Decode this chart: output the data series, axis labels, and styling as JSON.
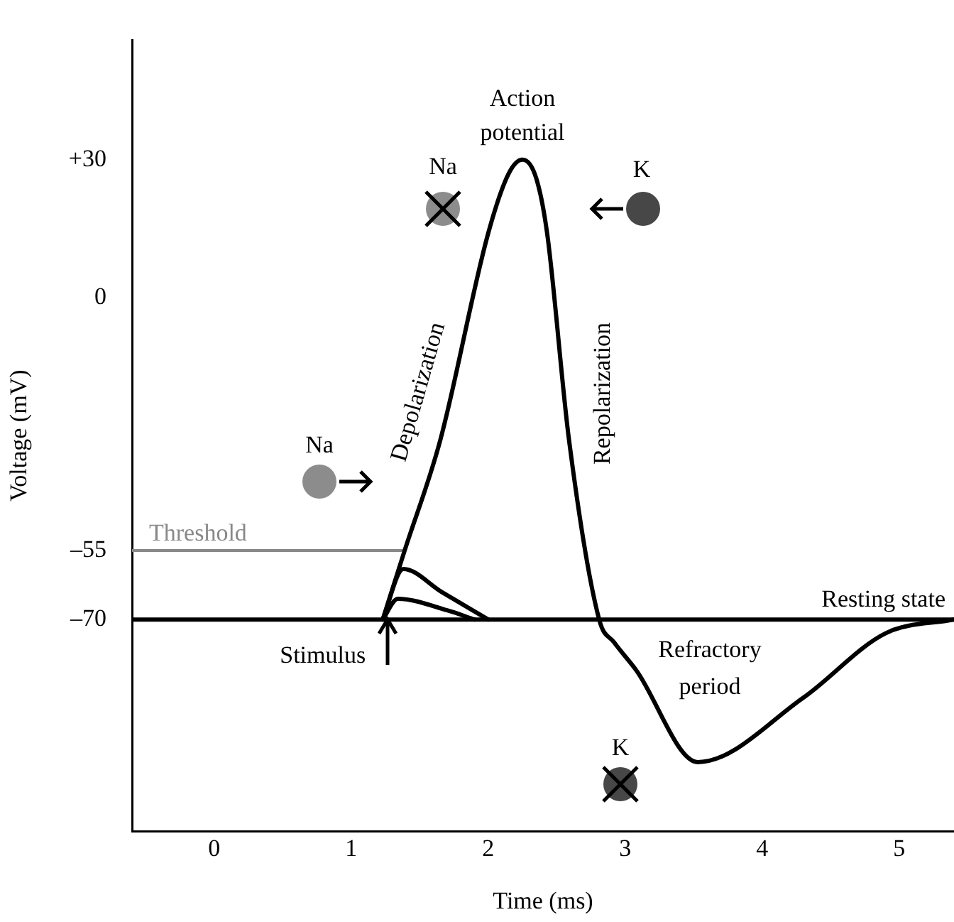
{
  "chart_data": {
    "type": "line",
    "xlabel": "Time (ms)",
    "ylabel": "Voltage (mV)",
    "xlim": [
      -0.6,
      5.4
    ],
    "xticks": [
      0,
      1,
      2,
      3,
      4,
      5
    ],
    "ylim": [
      -116,
      56
    ],
    "yticks": [
      {
        "value": 30,
        "label": "+30"
      },
      0,
      {
        "value": -55,
        "label": "–55"
      },
      {
        "value": -70,
        "label": "–70"
      }
    ],
    "grid": false,
    "marker": "none",
    "series": [
      {
        "color": "#000000",
        "x": [
          1.23,
          1.39,
          1.65,
          2.0,
          2.15,
          2.25,
          2.35,
          2.43,
          2.59,
          2.81,
          2.92,
          3.08,
          3.53,
          4.3,
          4.9,
          5.4
        ],
        "values": [
          -70,
          -55,
          -31,
          14,
          27,
          30,
          26,
          14,
          -31,
          -70,
          -75,
          -81,
          -101,
          -87,
          -73,
          -70
        ]
      },
      {
        "color": "#000000",
        "x": [
          1.23,
          1.38,
          1.66,
          2.0
        ],
        "values": [
          -70,
          -59,
          -64,
          -70
        ]
      },
      {
        "color": "#000000",
        "x": [
          1.23,
          1.34,
          1.7,
          1.9
        ],
        "values": [
          -70,
          -65.5,
          -68,
          -70
        ]
      },
      {
        "name": "Threshold",
        "color": "#888888",
        "x": [
          -0.6,
          1.39
        ],
        "values": [
          -55,
          -55
        ]
      }
    ],
    "ref_lines": [
      {
        "axis": "y",
        "value": -70,
        "label": "Resting state",
        "color": "#000000"
      }
    ],
    "annotations": [
      {
        "text": "Action potential",
        "x": 2.25,
        "y": 30
      },
      "Depolarization",
      "Repolarization",
      {
        "text": "Stimulus",
        "x": 1.23,
        "y": -70
      },
      "Refractory period",
      "Na",
      "Na",
      "K",
      "K"
    ]
  }
}
